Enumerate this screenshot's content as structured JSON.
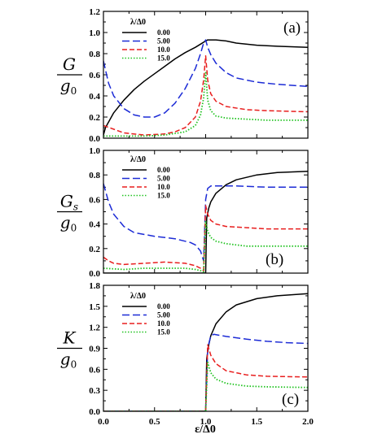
{
  "figure": {
    "xlabel": "ε/Δ0",
    "legend_title": "λ/Δ0",
    "ylabel_denominator": "g0"
  },
  "chart_data": [
    {
      "type": "line",
      "panel": "(a)",
      "ylabel_numerator": "G",
      "xlim": [
        0.0,
        2.0
      ],
      "ylim": [
        0.0,
        1.2
      ],
      "yticks": [
        "0.0",
        "0.2",
        "0.4",
        "0.6",
        "0.8",
        "1.0",
        "1.2"
      ],
      "legend_position": "top-left",
      "series": [
        {
          "name": "0.00",
          "color": "#000000",
          "dash": "solid",
          "x": [
            0.0,
            0.02,
            0.1,
            0.2,
            0.3,
            0.4,
            0.5,
            0.6,
            0.7,
            0.8,
            0.9,
            0.95,
            1.0,
            1.02,
            1.05,
            1.1,
            1.2,
            1.3,
            1.5,
            1.7,
            2.0
          ],
          "y": [
            0.03,
            0.1,
            0.24,
            0.36,
            0.46,
            0.54,
            0.61,
            0.68,
            0.75,
            0.81,
            0.86,
            0.89,
            0.92,
            0.93,
            0.93,
            0.93,
            0.92,
            0.9,
            0.88,
            0.87,
            0.86
          ]
        },
        {
          "name": "5.00",
          "color": "#1c2bd6",
          "dash": "long",
          "x": [
            0.0,
            0.05,
            0.1,
            0.2,
            0.3,
            0.4,
            0.5,
            0.6,
            0.7,
            0.8,
            0.9,
            0.95,
            0.98,
            1.0,
            1.02,
            1.05,
            1.1,
            1.2,
            1.3,
            1.5,
            1.7,
            2.0
          ],
          "y": [
            0.73,
            0.52,
            0.4,
            0.28,
            0.22,
            0.2,
            0.2,
            0.24,
            0.33,
            0.47,
            0.66,
            0.8,
            0.9,
            0.93,
            0.86,
            0.79,
            0.71,
            0.62,
            0.57,
            0.53,
            0.51,
            0.49
          ]
        },
        {
          "name": "10.0",
          "color": "#e81e1e",
          "dash": "medium",
          "x": [
            0.0,
            0.2,
            0.4,
            0.6,
            0.7,
            0.8,
            0.9,
            0.95,
            0.98,
            1.0,
            1.02,
            1.05,
            1.1,
            1.2,
            1.4,
            1.6,
            2.0
          ],
          "y": [
            0.12,
            0.05,
            0.03,
            0.04,
            0.06,
            0.1,
            0.2,
            0.35,
            0.55,
            0.78,
            0.55,
            0.42,
            0.35,
            0.3,
            0.27,
            0.26,
            0.25
          ]
        },
        {
          "name": "15.0",
          "color": "#22c322",
          "dash": "dotted",
          "x": [
            0.0,
            0.2,
            0.4,
            0.6,
            0.8,
            0.9,
            0.95,
            0.98,
            1.0,
            1.02,
            1.05,
            1.1,
            1.2,
            1.4,
            1.6,
            2.0
          ],
          "y": [
            0.02,
            0.02,
            0.02,
            0.03,
            0.06,
            0.12,
            0.22,
            0.38,
            0.62,
            0.36,
            0.26,
            0.21,
            0.19,
            0.18,
            0.17,
            0.17
          ]
        }
      ]
    },
    {
      "type": "line",
      "panel": "(b)",
      "ylabel_numerator": "Gs",
      "xlim": [
        0.0,
        2.0
      ],
      "ylim": [
        0.0,
        1.0
      ],
      "yticks": [
        "0.0",
        "0.2",
        "0.4",
        "0.6",
        "0.8",
        "1.0"
      ],
      "legend_position": "top-left",
      "series": [
        {
          "name": "0.00",
          "color": "#000000",
          "dash": "solid",
          "x": [
            0.0,
            0.5,
            0.99,
            1.0,
            1.01,
            1.03,
            1.05,
            1.1,
            1.2,
            1.3,
            1.5,
            1.7,
            2.0
          ],
          "y": [
            0.0,
            0.0,
            0.0,
            0.0,
            0.45,
            0.53,
            0.58,
            0.65,
            0.72,
            0.76,
            0.8,
            0.82,
            0.83
          ]
        },
        {
          "name": "5.00",
          "color": "#1c2bd6",
          "dash": "long",
          "x": [
            0.0,
            0.05,
            0.1,
            0.2,
            0.3,
            0.5,
            0.7,
            0.85,
            0.9,
            0.95,
            0.98,
            1.0,
            1.02,
            1.05,
            1.1,
            1.3,
            1.6,
            2.0
          ],
          "y": [
            0.73,
            0.58,
            0.48,
            0.38,
            0.33,
            0.3,
            0.28,
            0.25,
            0.23,
            0.18,
            0.1,
            0.6,
            0.69,
            0.71,
            0.71,
            0.71,
            0.7,
            0.7
          ]
        },
        {
          "name": "10.0",
          "color": "#e81e1e",
          "dash": "medium",
          "x": [
            0.0,
            0.05,
            0.1,
            0.2,
            0.4,
            0.6,
            0.8,
            0.9,
            0.95,
            0.98,
            1.0,
            1.02,
            1.05,
            1.1,
            1.2,
            1.4,
            1.6,
            2.0
          ],
          "y": [
            0.13,
            0.1,
            0.08,
            0.07,
            0.08,
            0.09,
            0.08,
            0.06,
            0.04,
            0.02,
            0.55,
            0.48,
            0.43,
            0.4,
            0.38,
            0.37,
            0.36,
            0.36
          ]
        },
        {
          "name": "15.0",
          "color": "#22c322",
          "dash": "dotted",
          "x": [
            0.0,
            0.2,
            0.4,
            0.6,
            0.8,
            0.9,
            0.95,
            0.98,
            1.0,
            1.02,
            1.05,
            1.1,
            1.2,
            1.4,
            1.6,
            2.0
          ],
          "y": [
            0.04,
            0.03,
            0.04,
            0.04,
            0.04,
            0.03,
            0.02,
            0.01,
            0.42,
            0.34,
            0.29,
            0.26,
            0.24,
            0.22,
            0.22,
            0.22
          ]
        }
      ]
    },
    {
      "type": "line",
      "panel": "(c)",
      "ylabel_numerator": "K",
      "xlim": [
        0.0,
        2.0
      ],
      "ylim": [
        0.0,
        1.8
      ],
      "xticks": [
        "0.0",
        "0.5",
        "1.0",
        "1.5",
        "2.0"
      ],
      "yticks": [
        "0.0",
        "0.3",
        "0.6",
        "0.9",
        "1.2",
        "1.5",
        "1.8"
      ],
      "legend_position": "top-left",
      "series": [
        {
          "name": "0.00",
          "color": "#000000",
          "dash": "solid",
          "x": [
            0.0,
            0.5,
            0.99,
            1.0,
            1.01,
            1.03,
            1.05,
            1.1,
            1.2,
            1.3,
            1.5,
            1.7,
            2.0
          ],
          "y": [
            0.0,
            0.0,
            0.0,
            0.0,
            0.75,
            0.95,
            1.08,
            1.25,
            1.42,
            1.52,
            1.61,
            1.65,
            1.68
          ]
        },
        {
          "name": "5.00",
          "color": "#1c2bd6",
          "dash": "long",
          "x": [
            0.0,
            0.5,
            0.99,
            1.0,
            1.02,
            1.05,
            1.08,
            1.2,
            1.4,
            1.6,
            1.8,
            2.0
          ],
          "y": [
            0.0,
            0.0,
            0.0,
            0.0,
            0.9,
            1.08,
            1.1,
            1.07,
            1.03,
            1.0,
            0.98,
            0.97
          ]
        },
        {
          "name": "10.0",
          "color": "#e81e1e",
          "dash": "medium",
          "x": [
            0.0,
            0.5,
            0.99,
            1.0,
            1.02,
            1.05,
            1.1,
            1.2,
            1.4,
            1.6,
            2.0
          ],
          "y": [
            0.0,
            0.0,
            0.0,
            0.0,
            0.95,
            0.8,
            0.68,
            0.58,
            0.52,
            0.5,
            0.49
          ]
        },
        {
          "name": "15.0",
          "color": "#22c322",
          "dash": "dotted",
          "x": [
            0.0,
            0.5,
            0.99,
            1.0,
            1.02,
            1.05,
            1.1,
            1.2,
            1.4,
            1.6,
            2.0
          ],
          "y": [
            0.0,
            0.0,
            0.0,
            0.0,
            0.7,
            0.55,
            0.46,
            0.4,
            0.36,
            0.35,
            0.34
          ]
        }
      ]
    }
  ]
}
